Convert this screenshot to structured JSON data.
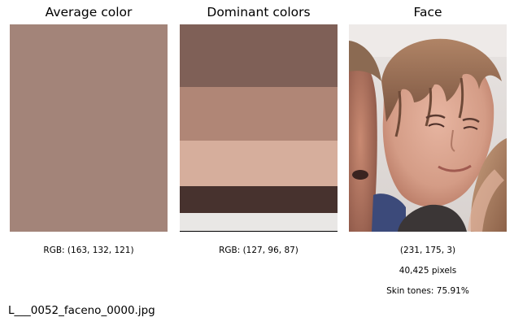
{
  "panels": {
    "average": {
      "title": "Average color",
      "rgb_label": "RGB: (163, 132, 121)",
      "color": "#a38479"
    },
    "dominant": {
      "title": "Dominant colors",
      "rgb_label": "RGB: (127, 96, 87)",
      "bands": [
        {
          "color": "#7f6057",
          "share": 0.3
        },
        {
          "color": "#b08676",
          "share": 0.26
        },
        {
          "color": "#d6ae9c",
          "share": 0.22
        },
        {
          "color": "#47322e",
          "share": 0.13
        },
        {
          "color": "#e9e7e5",
          "share": 0.09
        }
      ]
    },
    "face": {
      "title": "Face",
      "rgb_label": "(231, 175, 3)",
      "pixels_label": "40,425 pixels",
      "skin_label": "Skin tones: 75.91%"
    }
  },
  "footer": {
    "filename": "L___0052_faceno_0000.jpg"
  }
}
